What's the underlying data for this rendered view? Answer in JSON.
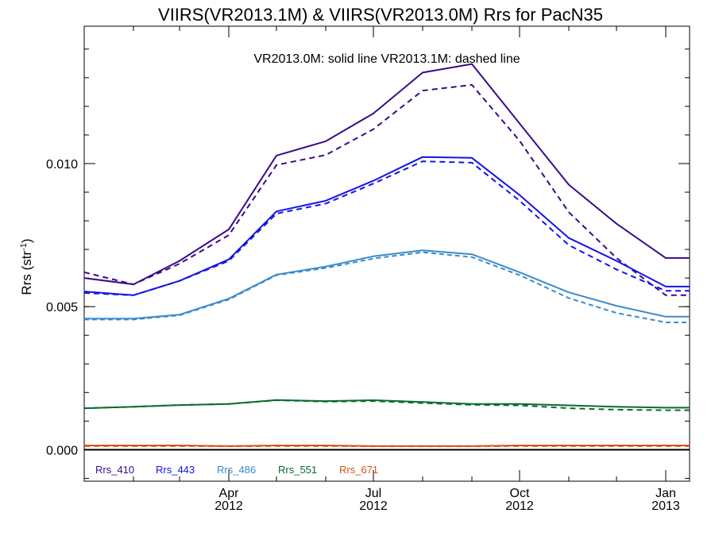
{
  "chart_data": {
    "type": "line",
    "title": "VIIRS(VR2013.1M) & VIIRS(VR2013.0M)  Rrs for PacN35",
    "annotation": "VR2013.0M: solid line   VR2013.1M: dashed line",
    "ylabel": "Rrs (str",
    "ylabel_superscript": "-1",
    "ylabel_close": ")",
    "xlim": [
      "2012-01-01",
      "2013-01-16"
    ],
    "ylim": [
      -0.0011,
      0.0148
    ],
    "x_ticks": [
      {
        "date": "2012-04-01",
        "line1": "Apr",
        "line2": "2012"
      },
      {
        "date": "2012-07-01",
        "line1": "Jul",
        "line2": "2012"
      },
      {
        "date": "2012-10-01",
        "line1": "Oct",
        "line2": "2012"
      },
      {
        "date": "2013-01-01",
        "line1": "Jan",
        "line2": "2013"
      }
    ],
    "y_ticks": [
      {
        "value": 0.0,
        "label": "0.000"
      },
      {
        "value": 0.005,
        "label": "0.005"
      },
      {
        "value": 0.01,
        "label": "0.010"
      }
    ],
    "zero_line": true,
    "legend_position": "bottom-left",
    "x": [
      "2012-01-01",
      "2012-02-01",
      "2012-03-01",
      "2012-04-01",
      "2012-05-01",
      "2012-06-01",
      "2012-07-01",
      "2012-08-01",
      "2012-09-01",
      "2012-10-01",
      "2012-11-01",
      "2012-12-01",
      "2013-01-01",
      "2013-01-16"
    ],
    "series": [
      {
        "name": "Rrs_410",
        "color": "#3a0a8c",
        "solid": [
          0.006,
          0.00578,
          0.0066,
          0.0077,
          0.01028,
          0.01078,
          0.01175,
          0.01318,
          0.01348,
          0.0114,
          0.00926,
          0.0079,
          0.0067,
          0.0067
        ],
        "dashed": [
          0.0062,
          0.00578,
          0.0065,
          0.0075,
          0.00995,
          0.0103,
          0.0112,
          0.01255,
          0.01275,
          0.0108,
          0.0083,
          0.0067,
          0.0054,
          0.0054
        ]
      },
      {
        "name": "Rrs_443",
        "color": "#1414e6",
        "solid": [
          0.00553,
          0.0054,
          0.0059,
          0.00665,
          0.00833,
          0.0087,
          0.0094,
          0.01023,
          0.0102,
          0.0089,
          0.0074,
          0.0066,
          0.0057,
          0.0057
        ],
        "dashed": [
          0.00548,
          0.0054,
          0.0059,
          0.0066,
          0.00825,
          0.0086,
          0.0093,
          0.01008,
          0.01003,
          0.0087,
          0.00715,
          0.0063,
          0.00555,
          0.00555
        ]
      },
      {
        "name": "Rrs_486",
        "color": "#3a8bcc",
        "solid": [
          0.00458,
          0.00458,
          0.00472,
          0.00528,
          0.00612,
          0.0064,
          0.00676,
          0.00697,
          0.00683,
          0.0062,
          0.0055,
          0.00503,
          0.00465,
          0.00465
        ],
        "dashed": [
          0.00455,
          0.00455,
          0.0047,
          0.00525,
          0.0061,
          0.00635,
          0.00668,
          0.0069,
          0.00673,
          0.0061,
          0.0053,
          0.00478,
          0.00445,
          0.00445
        ],
        "dash_style": "fine"
      },
      {
        "name": "Rrs_551",
        "color": "#0a6b34",
        "solid": [
          0.00145,
          0.0015,
          0.00156,
          0.0016,
          0.00174,
          0.0017,
          0.00173,
          0.00167,
          0.0016,
          0.0016,
          0.00155,
          0.0015,
          0.00147,
          0.00147
        ],
        "dashed": [
          0.00145,
          0.0015,
          0.00156,
          0.0016,
          0.00173,
          0.00168,
          0.0017,
          0.00163,
          0.00157,
          0.00155,
          0.00145,
          0.0014,
          0.00138,
          0.00138
        ]
      },
      {
        "name": "Rrs_671",
        "color": "#d8521a",
        "solid": [
          0.00015,
          0.00015,
          0.00015,
          0.00013,
          0.00015,
          0.00015,
          0.00013,
          0.00013,
          0.00013,
          0.00015,
          0.00015,
          0.00015,
          0.00015,
          0.00015
        ],
        "dashed": [
          0.00013,
          0.00013,
          0.00013,
          0.00012,
          0.00013,
          0.00013,
          0.00012,
          0.00012,
          0.00012,
          0.00013,
          0.00013,
          0.00013,
          0.00013,
          0.00013
        ]
      }
    ]
  }
}
